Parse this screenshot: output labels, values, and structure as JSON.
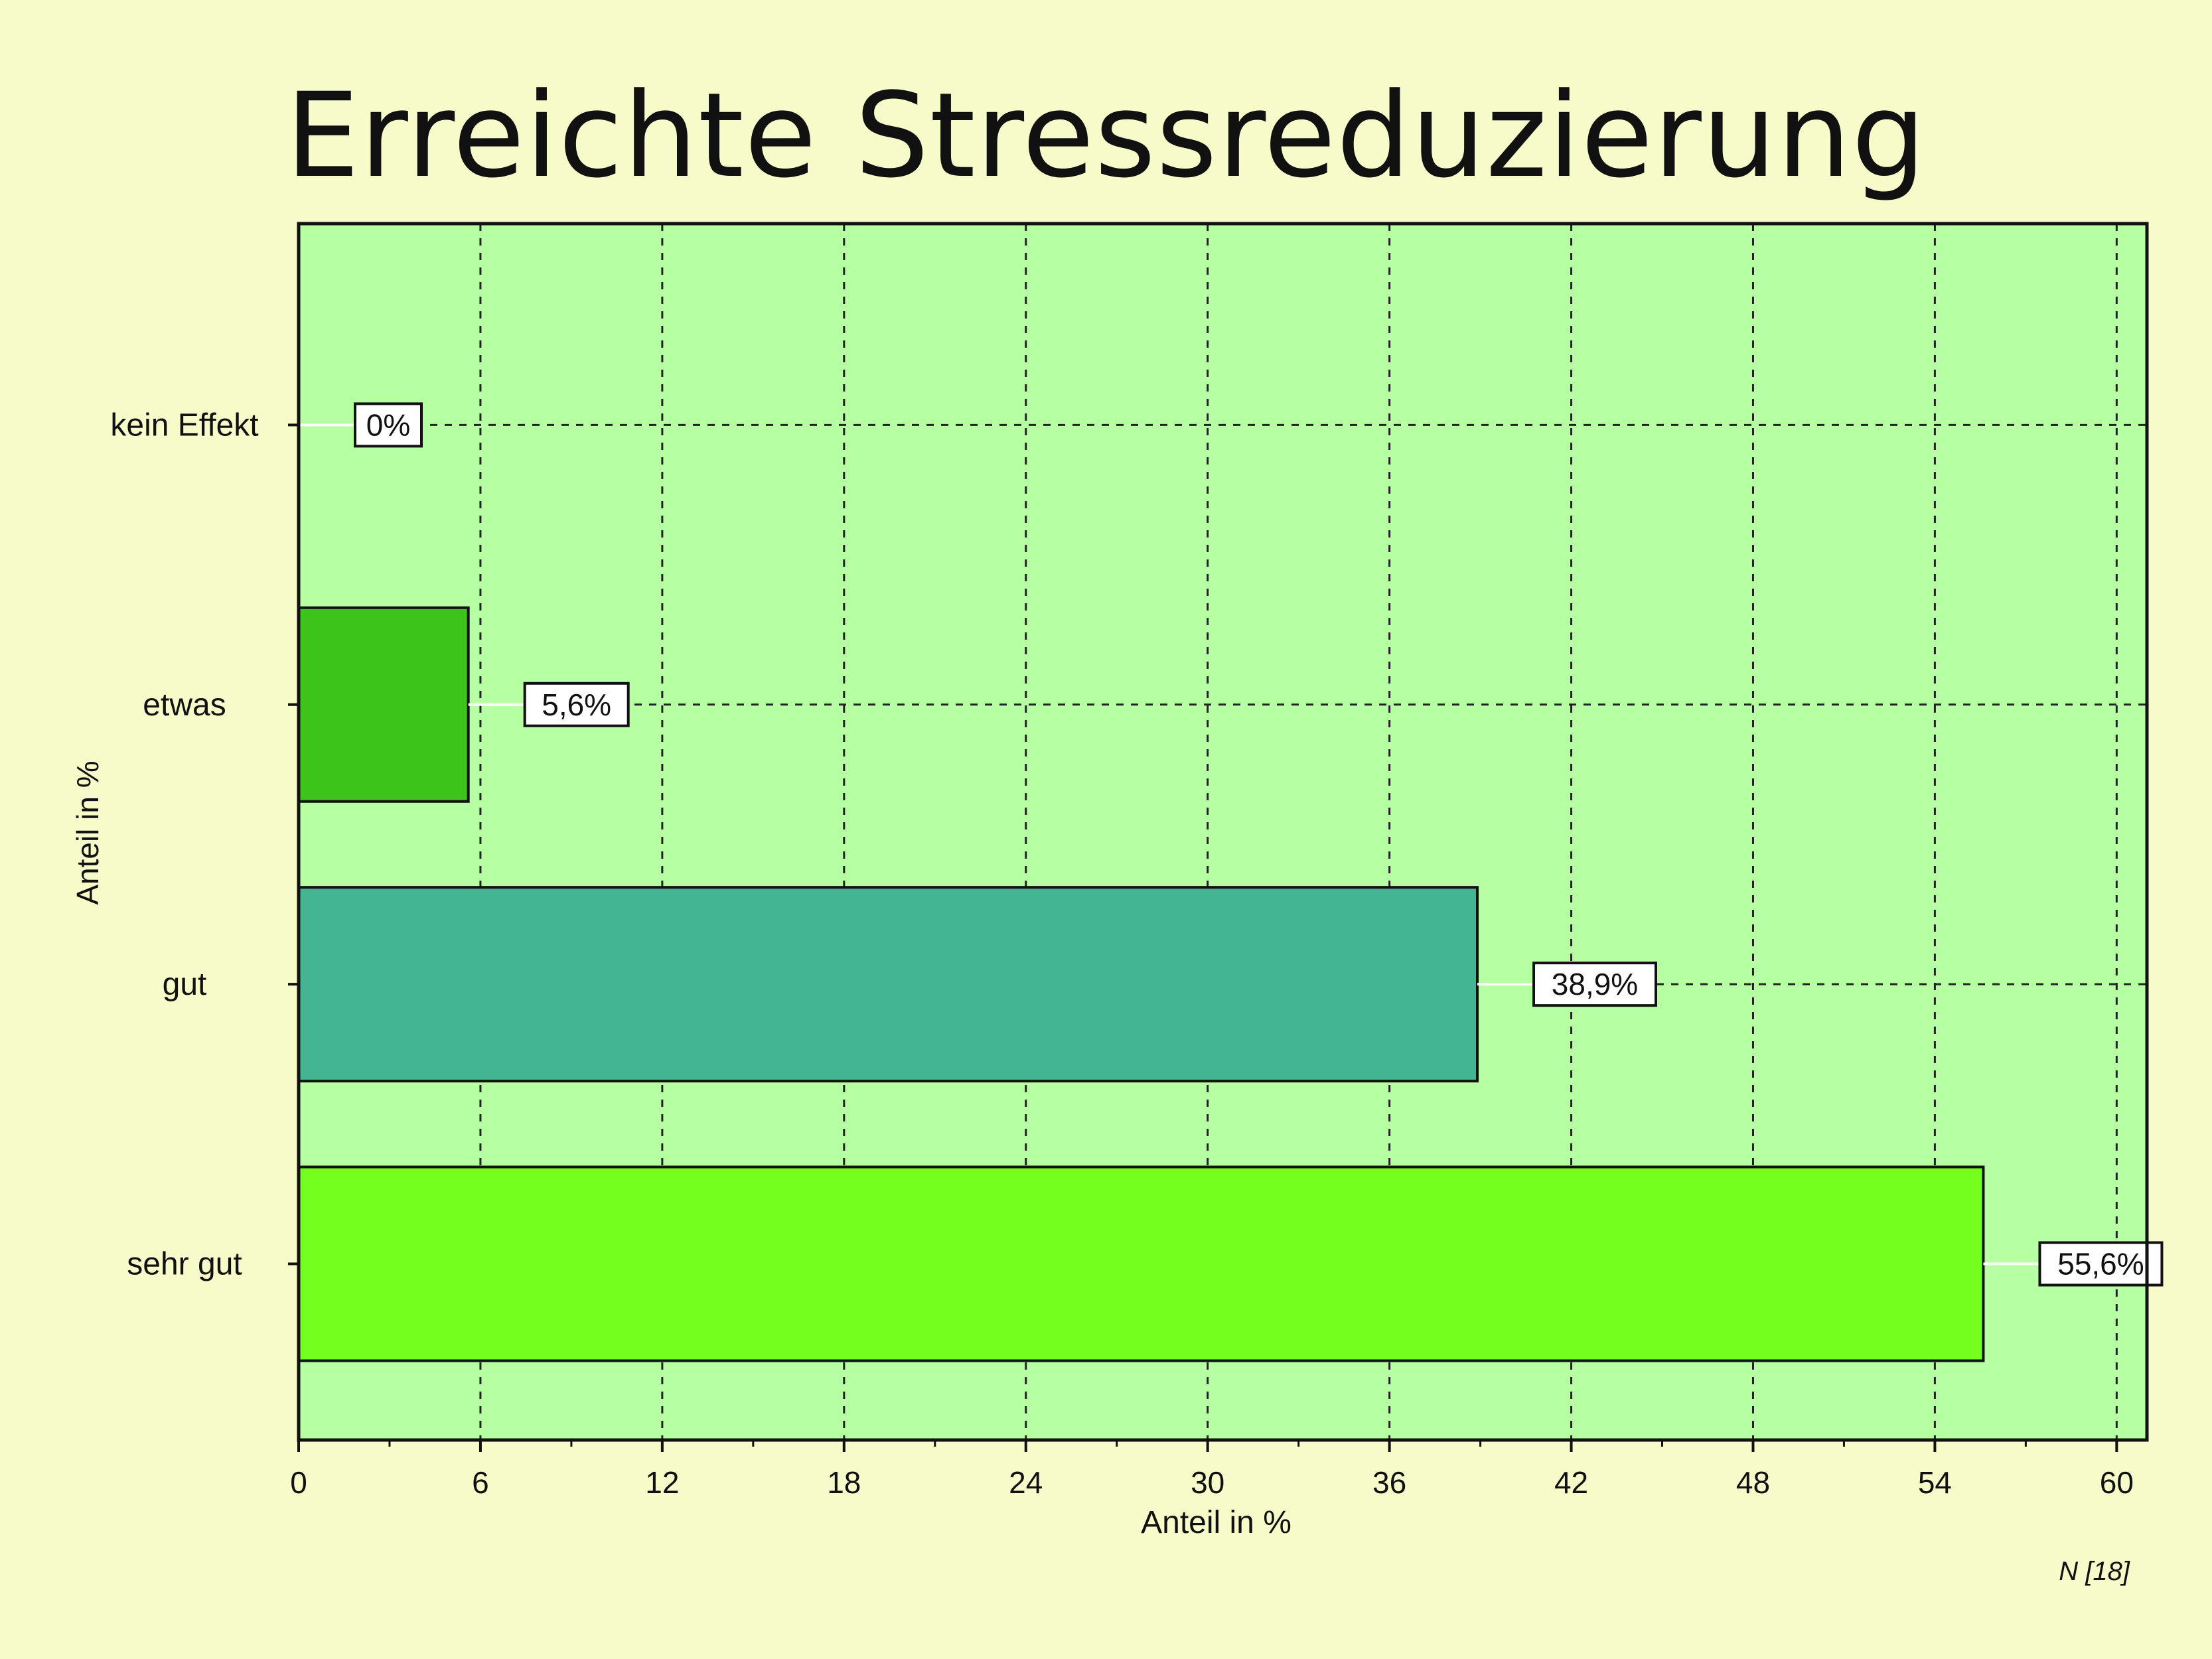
{
  "chart_data": {
    "type": "bar",
    "orientation": "horizontal",
    "title": "Erreichte Stressreduzierung",
    "xlabel": "Anteil in %",
    "ylabel": "Anteil in %",
    "categories": [
      "kein Effekt",
      "etwas",
      "gut",
      "sehr gut"
    ],
    "values": [
      0,
      5.6,
      38.9,
      55.6
    ],
    "data_labels": [
      "0%",
      "5,6%",
      "38,9%",
      "55,6%"
    ],
    "bar_colors": [
      "#3cc41a",
      "#3cc41a",
      "#43b592",
      "#75ff1f"
    ],
    "xlim": [
      0,
      61
    ],
    "xticks": [
      0,
      6,
      12,
      18,
      24,
      30,
      36,
      42,
      48,
      54,
      60
    ],
    "grid": true,
    "note": "N [18]"
  },
  "colors": {
    "page_background": "#f6fbc9",
    "plot_background": "#b7ffa3",
    "grid": "#222222"
  }
}
